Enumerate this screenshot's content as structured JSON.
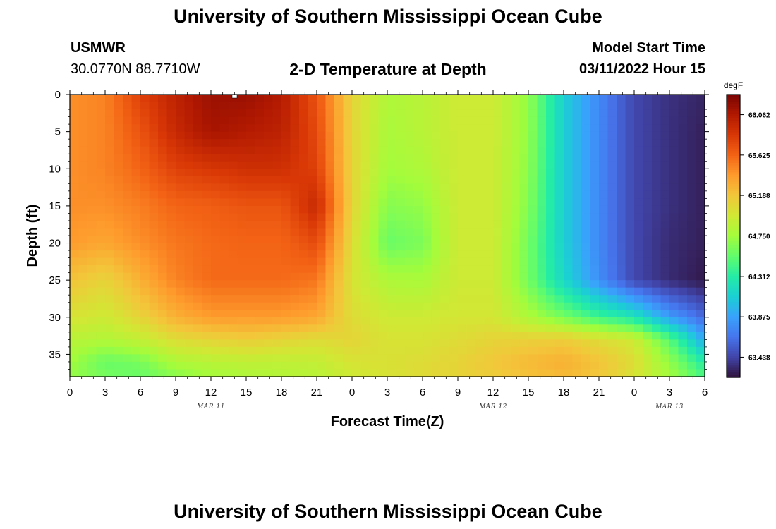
{
  "header": {
    "title": "University of Southern Mississippi Ocean Cube",
    "station": "USMWR",
    "coords": "30.0770N  88.7710W",
    "plot_title": "2-D Temperature at Depth",
    "model_start_label": "Model Start Time",
    "model_start_value": "03/11/2022 Hour 15"
  },
  "footer": {
    "title": "University of Southern Mississippi Ocean Cube"
  },
  "chart_data": {
    "type": "heatmap",
    "title": "2-D Temperature at Depth",
    "xlabel": "Forecast Time(Z)",
    "ylabel": "Depth (ft)",
    "x_ticks": [
      "0",
      "3",
      "6",
      "9",
      "12",
      "15",
      "18",
      "21",
      "0",
      "3",
      "6",
      "9",
      "12",
      "15",
      "18",
      "21",
      "0",
      "3",
      "6"
    ],
    "x_dates": [
      "MAR 11",
      "MAR 12",
      "MAR 13"
    ],
    "y_ticks": [
      "0",
      "5",
      "10",
      "15",
      "20",
      "25",
      "30",
      "35"
    ],
    "ylim": [
      0,
      38
    ],
    "y_inverted": true,
    "xlim_hours": [
      0,
      54
    ],
    "colorbar": {
      "unit": "degF",
      "min": 63.22,
      "max": 66.28,
      "tick_labels": [
        "66.062",
        "65.625",
        "65.188",
        "64.750",
        "64.312",
        "63.875",
        "63.438"
      ],
      "tick_values": [
        66.062,
        65.625,
        65.188,
        64.75,
        64.312,
        63.875,
        63.438
      ],
      "colors": [
        "#30123b",
        "#4145ab",
        "#4675ed",
        "#39a2fc",
        "#1bcfd4",
        "#24eca6",
        "#61fc6c",
        "#a4fc3b",
        "#d1e834",
        "#f3c63a",
        "#fe9b2d",
        "#f36315",
        "#d93806",
        "#b11901",
        "#7a0403"
      ]
    },
    "x_hours": [
      0,
      3,
      6,
      9,
      12,
      15,
      18,
      21,
      24,
      27,
      30,
      33,
      36,
      39,
      42,
      45,
      48,
      51,
      54
    ],
    "depths": [
      0,
      5,
      10,
      15,
      20,
      25,
      30,
      33,
      36,
      38
    ],
    "values": [
      [
        65.45,
        65.5,
        65.8,
        66.0,
        66.15,
        66.15,
        66.05,
        65.7,
        65.1,
        64.8,
        64.85,
        64.95,
        64.95,
        64.7,
        64.1,
        63.75,
        63.45,
        63.35,
        63.3
      ],
      [
        65.45,
        65.5,
        65.7,
        65.95,
        66.1,
        66.05,
        66.0,
        65.75,
        65.1,
        64.78,
        64.85,
        64.95,
        64.95,
        64.7,
        64.1,
        63.75,
        63.45,
        63.35,
        63.28
      ],
      [
        65.45,
        65.5,
        65.62,
        65.8,
        65.85,
        65.9,
        65.9,
        65.8,
        65.1,
        64.75,
        64.8,
        64.95,
        64.95,
        64.68,
        64.1,
        63.75,
        63.45,
        63.35,
        63.28
      ],
      [
        65.45,
        65.45,
        65.52,
        65.62,
        65.65,
        65.7,
        65.7,
        65.95,
        65.1,
        64.65,
        64.7,
        64.95,
        64.95,
        64.65,
        64.1,
        63.75,
        63.45,
        63.35,
        63.28
      ],
      [
        65.4,
        65.35,
        65.45,
        65.55,
        65.6,
        65.62,
        65.62,
        65.75,
        65.05,
        64.55,
        64.62,
        64.95,
        64.95,
        64.6,
        64.1,
        63.75,
        63.45,
        63.33,
        63.28
      ],
      [
        65.2,
        65.1,
        65.3,
        65.5,
        65.6,
        65.6,
        65.6,
        65.55,
        65.0,
        64.8,
        64.78,
        64.95,
        64.95,
        64.6,
        64.15,
        63.78,
        63.45,
        63.33,
        63.25
      ],
      [
        65.0,
        64.95,
        65.1,
        65.3,
        65.4,
        65.4,
        65.4,
        65.35,
        65.05,
        64.95,
        64.95,
        64.98,
        64.98,
        64.8,
        64.6,
        64.4,
        64.25,
        63.85,
        63.6
      ],
      [
        64.85,
        64.82,
        64.9,
        65.05,
        65.1,
        65.15,
        65.1,
        65.05,
        65.1,
        65.0,
        65.0,
        65.05,
        65.1,
        65.12,
        65.15,
        65.05,
        64.95,
        64.5,
        63.9
      ],
      [
        64.75,
        64.55,
        64.6,
        64.8,
        64.85,
        64.88,
        64.88,
        64.9,
        65.0,
        65.02,
        65.05,
        65.1,
        65.18,
        65.25,
        65.3,
        65.2,
        65.05,
        64.7,
        64.3
      ],
      [
        64.7,
        64.6,
        64.55,
        64.65,
        64.75,
        64.8,
        64.82,
        64.85,
        64.95,
        65.0,
        65.05,
        65.1,
        65.15,
        65.2,
        65.25,
        65.18,
        65.0,
        64.75,
        64.45
      ]
    ]
  }
}
